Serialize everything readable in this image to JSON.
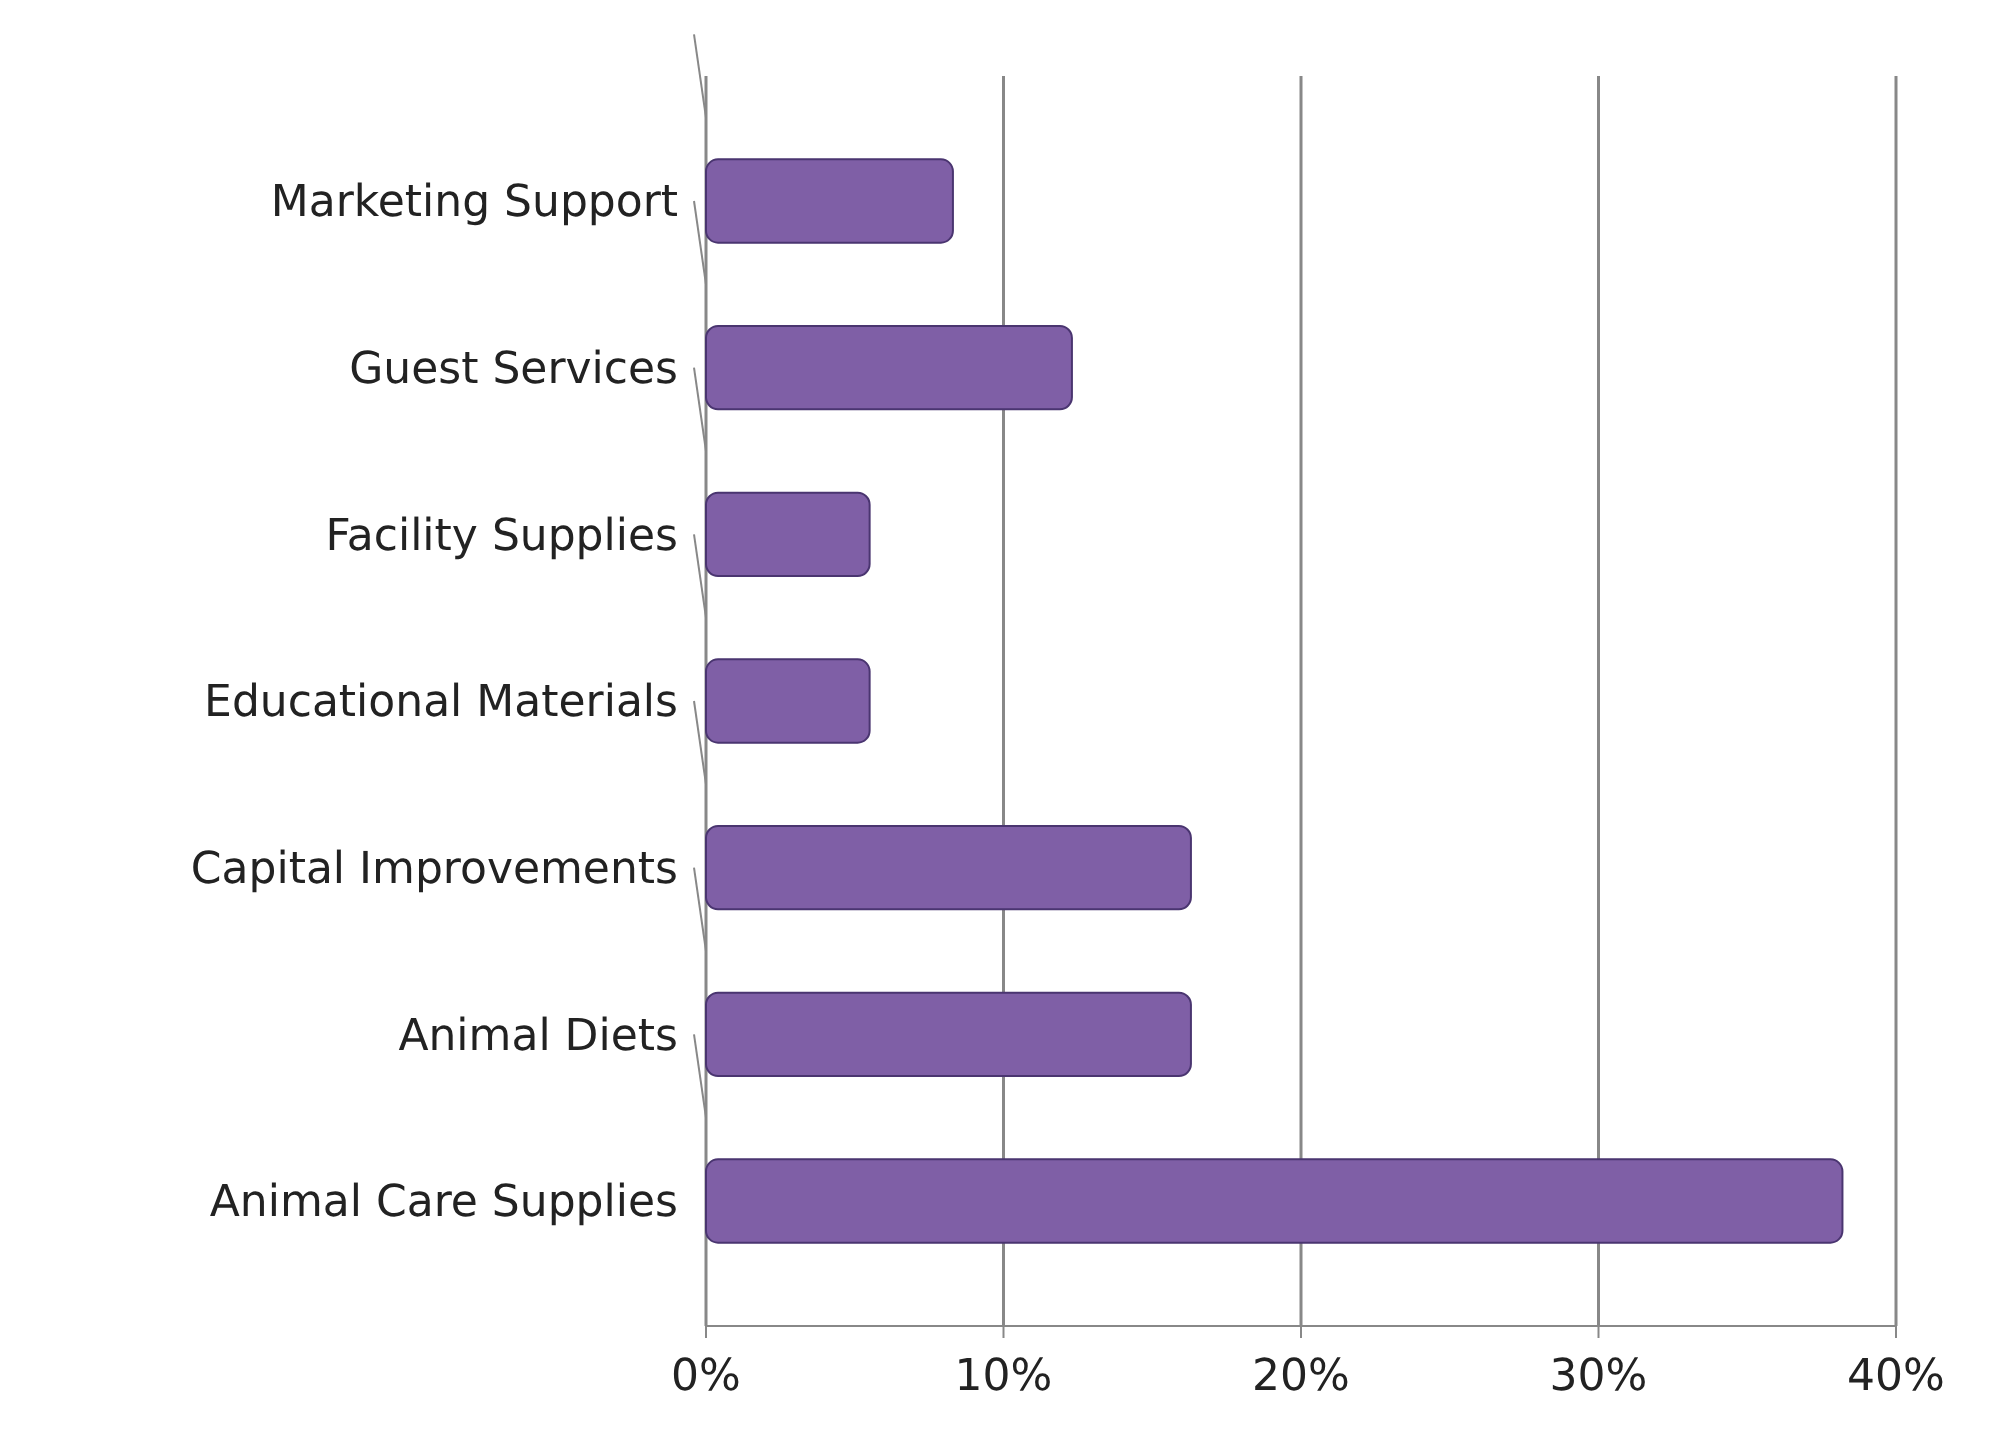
{
  "chart_data": {
    "type": "bar",
    "orientation": "horizontal",
    "categories": [
      "Marketing Support",
      "Guest Services",
      "Facility Supplies",
      "Educational Materials",
      "Capital Improvements",
      "Animal Diets",
      "Animal Care Supplies"
    ],
    "values": [
      8.3,
      12.3,
      5.5,
      5.5,
      16.3,
      16.3,
      38.2
    ],
    "color": "#7f5fa6",
    "xlim": [
      0,
      40
    ],
    "xticks": [
      {
        "value": 0,
        "label": "0%"
      },
      {
        "value": 10,
        "label": "10%"
      },
      {
        "value": 20,
        "label": "20%"
      },
      {
        "value": 30,
        "label": "30%"
      },
      {
        "value": 40,
        "label": "40%"
      }
    ],
    "grid": "x"
  }
}
